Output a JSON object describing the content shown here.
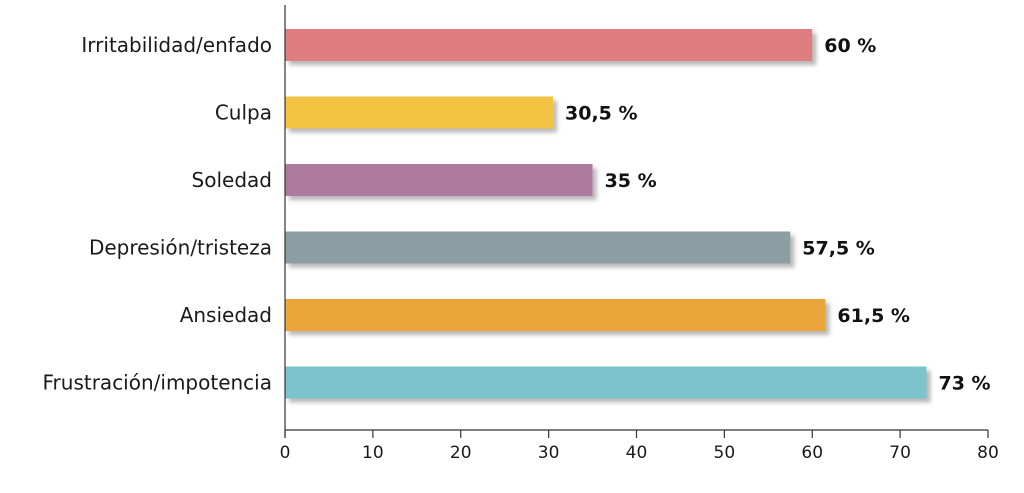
{
  "chart_data": {
    "type": "bar",
    "orientation": "horizontal",
    "categories": [
      "Irritabilidad/enfado",
      "Culpa",
      "Soledad",
      "Depresión/tristeza",
      "Ansiedad",
      "Frustración/impotencia"
    ],
    "values": [
      60,
      30.5,
      35,
      57.5,
      61.5,
      73
    ],
    "value_labels": [
      "60 %",
      "30,5 %",
      "35 %",
      "57,5 %",
      "61,5 %",
      "73 %"
    ],
    "bar_colors": [
      "#e07d80",
      "#f2c443",
      "#ad7aa0",
      "#8a9ea4",
      "#eaa63a",
      "#7cc3cc"
    ],
    "xlim": [
      0,
      80
    ],
    "x_ticks": [
      0,
      10,
      20,
      30,
      40,
      50,
      60,
      70,
      80
    ],
    "x_tick_labels": [
      "0",
      "10",
      "20",
      "30",
      "40",
      "50",
      "60",
      "70",
      "80"
    ],
    "grid": false,
    "legend": "none"
  }
}
